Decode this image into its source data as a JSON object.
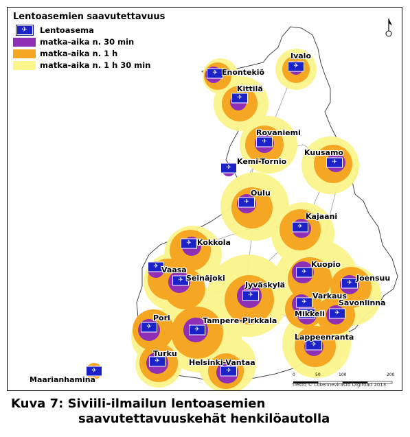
{
  "legend": {
    "title": "Lentoasemien saavutettavuus",
    "items": [
      {
        "label": "Lentoasema",
        "kind": "airport-icon",
        "color": "#1a22c8"
      },
      {
        "label": "matka-aika n. 30 min",
        "kind": "swatch",
        "color": "#8e2fb5"
      },
      {
        "label": "matka-aika n. 1 h",
        "kind": "swatch",
        "color": "#f5a623"
      },
      {
        "label": "matka-aika n. 1 h 30 min",
        "kind": "swatch",
        "color": "#fbf58c"
      }
    ]
  },
  "airports": [
    {
      "name": "Ivalo"
    },
    {
      "name": "Enontekiö"
    },
    {
      "name": "Kittilä"
    },
    {
      "name": "Rovaniemi"
    },
    {
      "name": "Kuusamo"
    },
    {
      "name": "Kemi-Tornio"
    },
    {
      "name": "Oulu"
    },
    {
      "name": "Kajaani"
    },
    {
      "name": "Kokkola"
    },
    {
      "name": "Vaasa"
    },
    {
      "name": "Seinäjoki"
    },
    {
      "name": "Kuopio"
    },
    {
      "name": "Joensuu"
    },
    {
      "name": "Jyväskylä"
    },
    {
      "name": "Varkaus"
    },
    {
      "name": "Savonlinna"
    },
    {
      "name": "Mikkeli"
    },
    {
      "name": "Pori"
    },
    {
      "name": "Tampere-Pirkkala"
    },
    {
      "name": "Lappeenranta"
    },
    {
      "name": "Turku"
    },
    {
      "name": "Helsinki-Vantaa"
    },
    {
      "name": "Maarianhamina"
    }
  ],
  "scale": {
    "ticks": [
      "0",
      "50",
      "100",
      "",
      "200"
    ],
    "unit": "km"
  },
  "credit": "Tiestö © Liikennevirasto Digiroad 2013",
  "caption": {
    "line1": "Kuva 7: Siviili-ilmailun lentoasemien",
    "line2": "saavutettavuuskehät henkilöautolla"
  },
  "colors": {
    "land": "#ffffff",
    "zone_90": "#fbf58c",
    "zone_60": "#f5a623",
    "zone_30": "#8e2fb5",
    "airport": "#1a22c8",
    "roads": "#9a9a9a"
  }
}
